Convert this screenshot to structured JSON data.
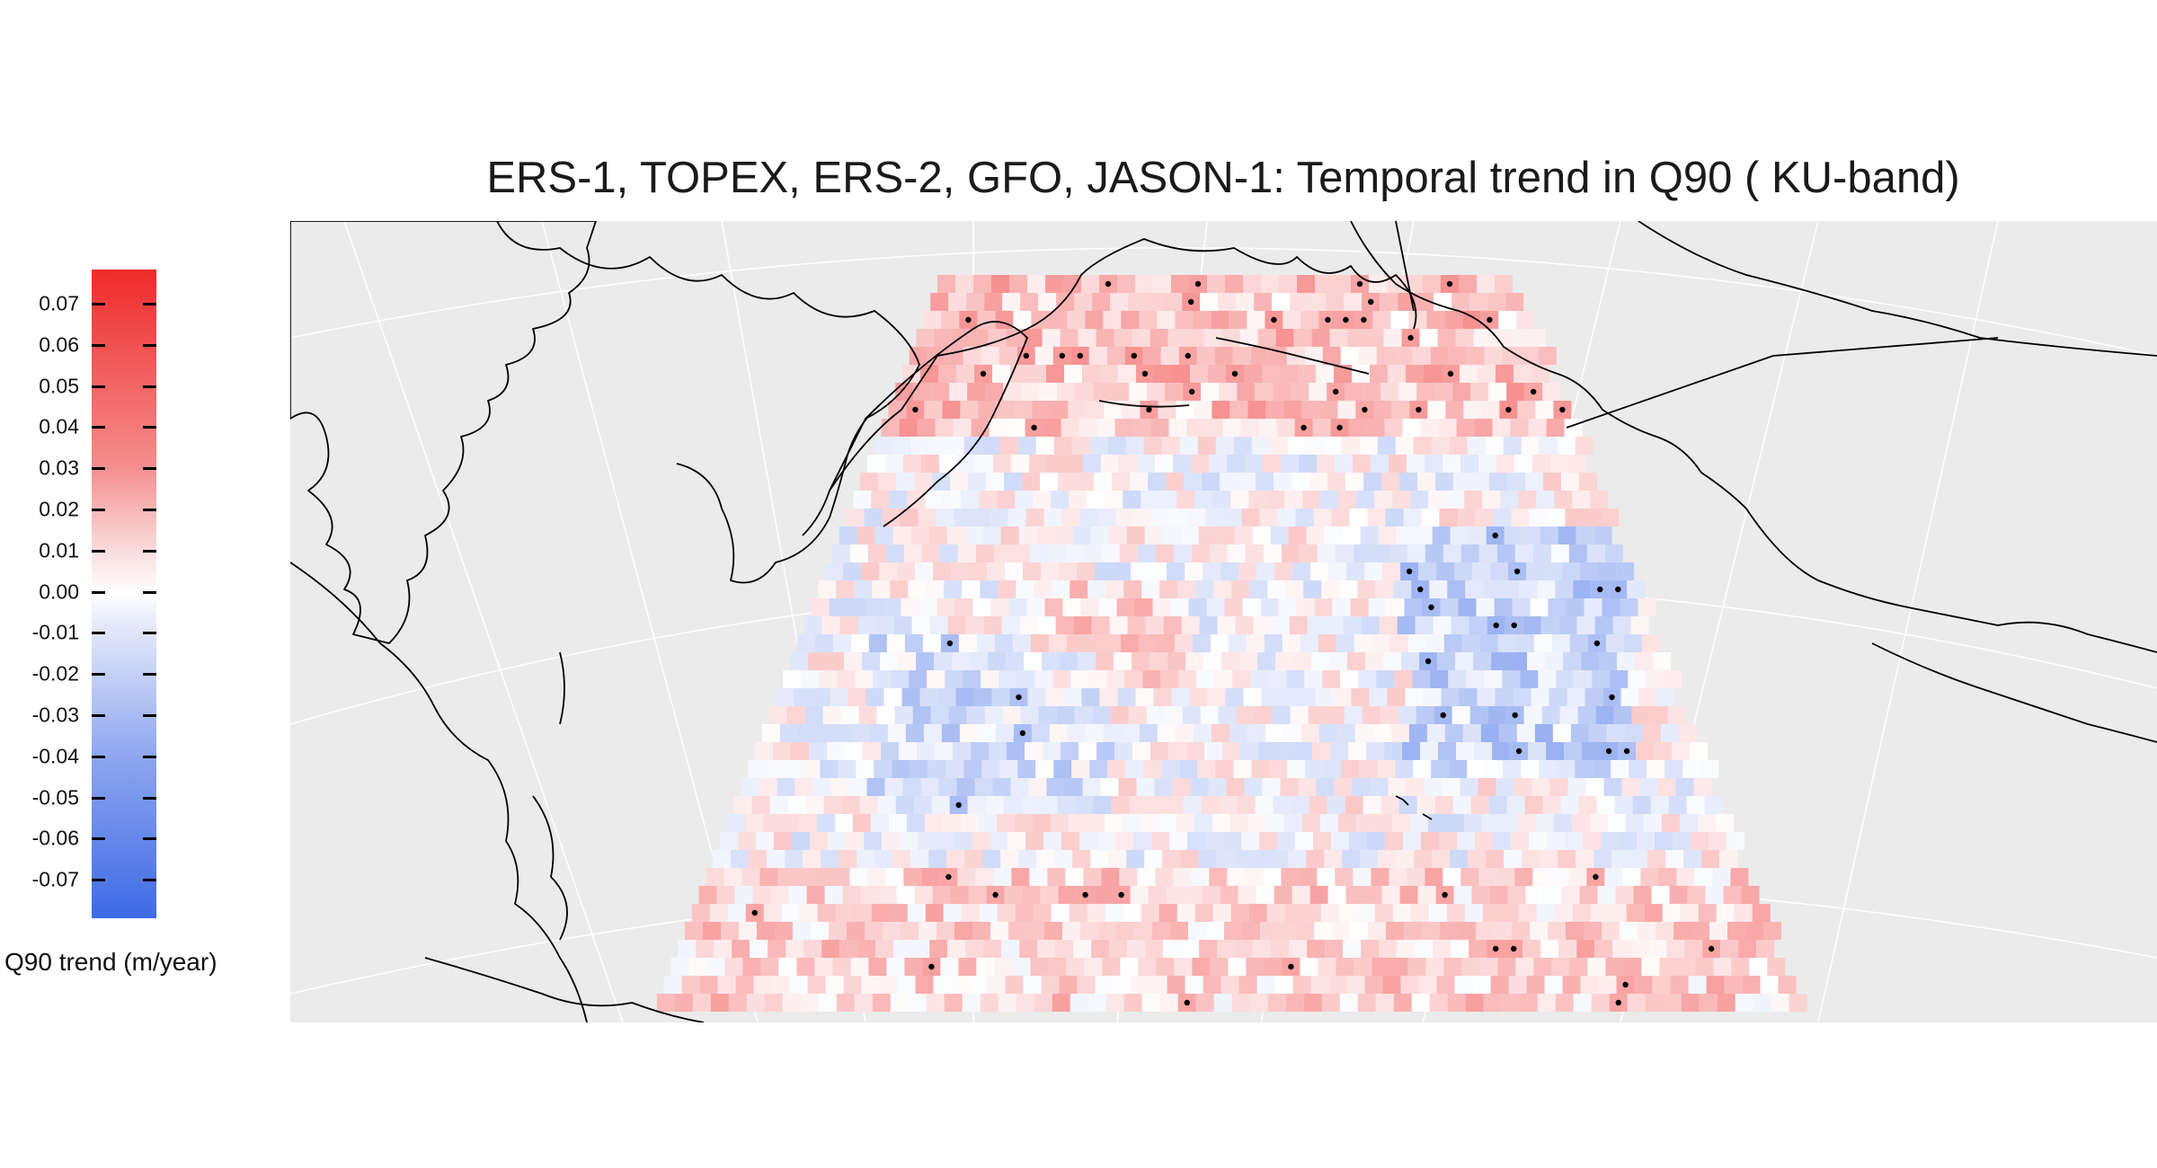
{
  "title": "ERS-1, TOPEX, ERS-2, GFO, JASON-1: Temporal trend in Q90 ( KU-band)",
  "legend": {
    "title": "Q90 trend (m/year)",
    "ticks": [
      "0.07",
      "0.06",
      "0.05",
      "0.04",
      "0.03",
      "0.02",
      "0.01",
      "0.00",
      "-0.01",
      "-0.02",
      "-0.03",
      "-0.04",
      "-0.05",
      "-0.06",
      "-0.07"
    ],
    "range": [
      -0.08,
      0.08
    ],
    "colors": {
      "high": "#ef2b2b",
      "mid": "#ffffff",
      "low": "#3e6ae5"
    }
  },
  "colors": {
    "map_background": "#ebebeb",
    "land_outline": "#000000",
    "graticule": "#ffffff"
  }
}
